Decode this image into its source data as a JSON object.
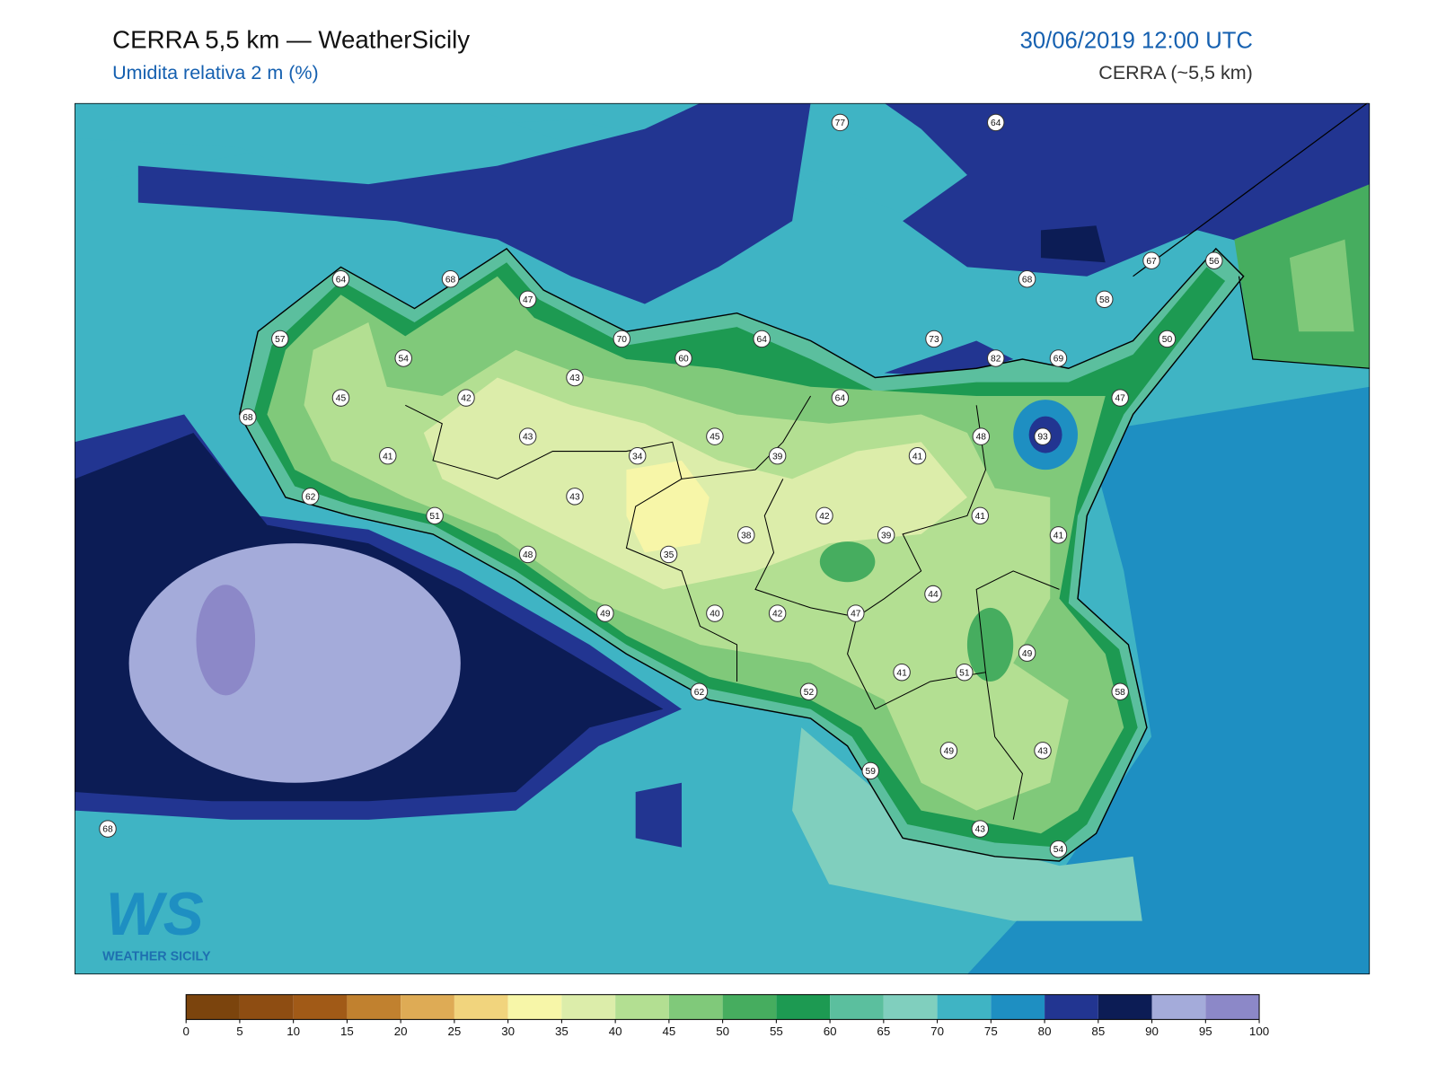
{
  "header": {
    "title": "CERRA 5,5 km — WeatherSicily",
    "subtitle": "Umidita relativa 2 m (%)",
    "datetime": "30/06/2019 12:00 UTC",
    "source": "CERRA (~5,5 km)"
  },
  "map": {
    "stations": [
      77,
      64,
      64,
      68,
      47,
      57,
      70,
      64,
      60,
      73,
      68,
      67,
      56,
      58,
      82,
      69,
      50,
      54,
      43,
      45,
      42,
      64,
      47,
      68,
      93,
      48,
      43,
      45,
      41,
      34,
      39,
      41,
      62,
      43,
      51,
      42,
      41,
      41,
      38,
      39,
      35,
      48,
      44,
      49,
      40,
      42,
      47,
      49,
      41,
      51,
      62,
      52,
      58,
      49,
      43,
      59,
      43,
      54,
      68
    ]
  },
  "colorbar": {
    "ticks": [
      0,
      5,
      10,
      15,
      20,
      25,
      30,
      35,
      40,
      45,
      50,
      55,
      60,
      65,
      70,
      75,
      80,
      85,
      90,
      95,
      100
    ],
    "colors": [
      "#7b440d",
      "#8e4d12",
      "#a15a17",
      "#c1812f",
      "#deab55",
      "#f1d47d",
      "#f7f6a8",
      "#dcedaa",
      "#b3df92",
      "#80c97a",
      "#46ad5f",
      "#1d9a52",
      "#5bbf9e",
      "#80cfbe",
      "#3fb4c4",
      "#1e8fc2",
      "#223591",
      "#0c1c55",
      "#a4abda",
      "#8c88c8"
    ]
  },
  "logo": {
    "text": "WS",
    "subtitle": "WEATHER SICILY"
  }
}
